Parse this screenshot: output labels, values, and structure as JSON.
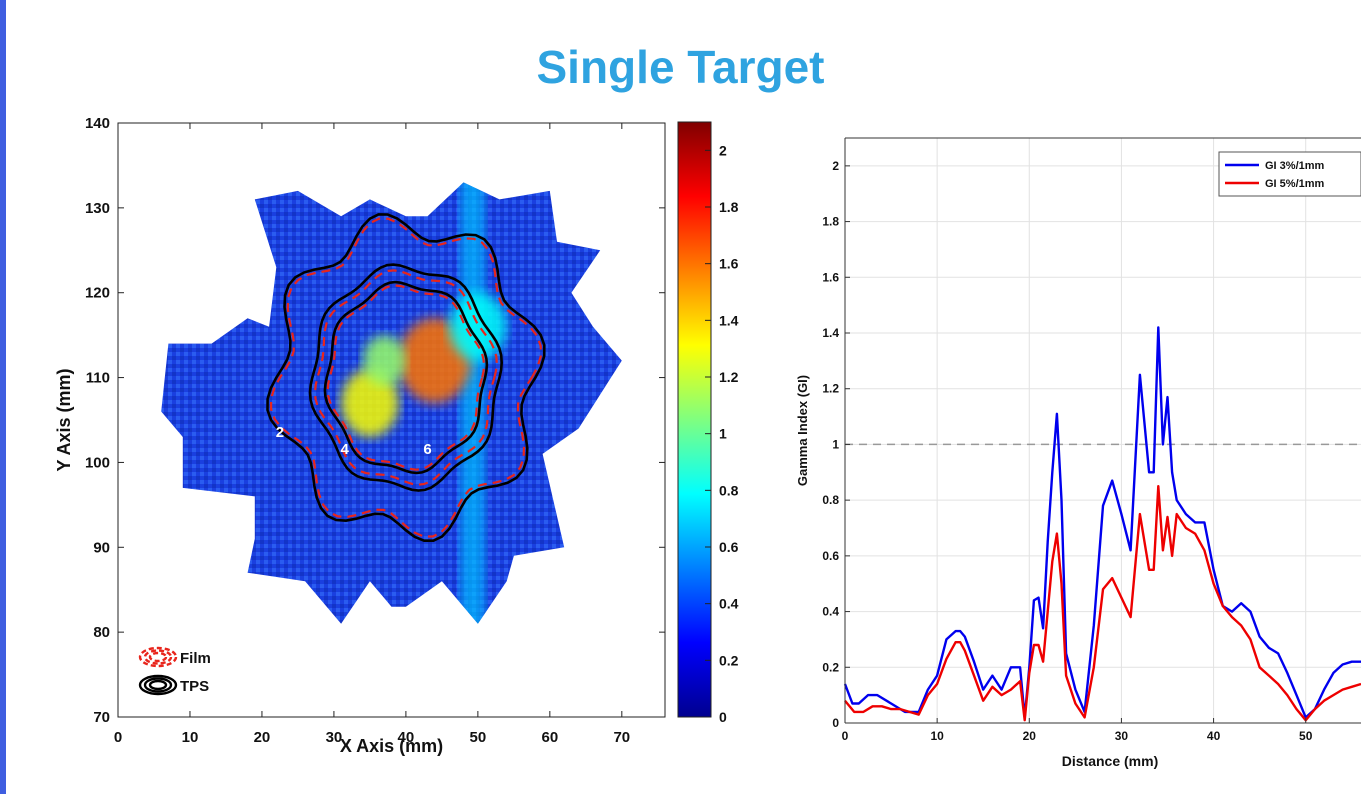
{
  "slide": {
    "title": "Single Target",
    "accent_color": "#3f5ee0",
    "title_color": "#2fa3e0"
  },
  "chart_data": [
    {
      "type": "heatmap",
      "title": "",
      "xlabel": "X Axis (mm)",
      "ylabel": "Y Axis (mm)",
      "xlim": [
        0,
        76
      ],
      "ylim": [
        70,
        140
      ],
      "xticks": [
        0,
        10,
        20,
        30,
        40,
        50,
        60,
        70
      ],
      "yticks": [
        70,
        80,
        90,
        100,
        110,
        120,
        130,
        140
      ],
      "colormap": "jet",
      "colorbar": {
        "range": [
          0,
          2.1
        ],
        "ticks": [
          0,
          0.2,
          0.4,
          0.6,
          0.8,
          1,
          1.2,
          1.4,
          1.6,
          1.8,
          2
        ]
      },
      "region_outline": [
        [
          21,
          116
        ],
        [
          18,
          117
        ],
        [
          13,
          114
        ],
        [
          7,
          114
        ],
        [
          6,
          106
        ],
        [
          9,
          103
        ],
        [
          9,
          97
        ],
        [
          19,
          96
        ],
        [
          19,
          91
        ],
        [
          18,
          87
        ],
        [
          26,
          86
        ],
        [
          31,
          81
        ],
        [
          35,
          86
        ],
        [
          38,
          83
        ],
        [
          40,
          83
        ],
        [
          45,
          86
        ],
        [
          50,
          81
        ],
        [
          54,
          86
        ],
        [
          55,
          89
        ],
        [
          62,
          90
        ],
        [
          59,
          101
        ],
        [
          64,
          104
        ],
        [
          70,
          112
        ],
        [
          66,
          116
        ],
        [
          63,
          120
        ],
        [
          67,
          125
        ],
        [
          61,
          126
        ],
        [
          60,
          132
        ],
        [
          53,
          131
        ],
        [
          48,
          133
        ],
        [
          43,
          129
        ],
        [
          40,
          129
        ],
        [
          35,
          131
        ],
        [
          31,
          129
        ],
        [
          25,
          132
        ],
        [
          19,
          131
        ],
        [
          22,
          123
        ]
      ],
      "hot_spots": [
        {
          "x": 44,
          "y": 112,
          "r": 5,
          "level": 1.6
        },
        {
          "x": 35,
          "y": 107,
          "r": 4,
          "level": 1.3
        },
        {
          "x": 37,
          "y": 112,
          "r": 3,
          "level": 1.1
        },
        {
          "x": 50,
          "y": 116,
          "r": 4,
          "level": 0.8
        }
      ],
      "dose_level_labels": [
        {
          "text": "2",
          "x": 22.5,
          "y": 103
        },
        {
          "text": "4",
          "x": 31.5,
          "y": 101
        },
        {
          "text": "6",
          "x": 43,
          "y": 101
        }
      ],
      "contour_radii": [
        {
          "film": 17.5,
          "tps": 18,
          "wave_amp": 1.6
        },
        {
          "film": 12.3,
          "tps": 13,
          "wave_amp": 0.5
        },
        {
          "film": 10.6,
          "tps": 11,
          "wave_amp": 0.4
        }
      ],
      "contour_center": [
        40,
        110
      ],
      "legend": [
        {
          "name": "Film",
          "color": "#e8251c",
          "style": "dashed"
        },
        {
          "name": "TPS",
          "color": "#000000",
          "style": "solid"
        }
      ],
      "legend_placement": "bottom-left"
    },
    {
      "type": "line",
      "title": "",
      "xlabel": "Distance (mm)",
      "ylabel": "Gamma Index (GI)",
      "xlim": [
        0,
        56
      ],
      "ylim": [
        0,
        2.1
      ],
      "xticks": [
        0,
        10,
        20,
        30,
        40,
        50
      ],
      "yticks": [
        0,
        0.2,
        0.4,
        0.6,
        0.8,
        1,
        1.2,
        1.4,
        1.6,
        1.8,
        2
      ],
      "grid": true,
      "reference_line": {
        "y": 1,
        "style": "dashed",
        "color": "#999999"
      },
      "legend_placement": "top-right",
      "series": [
        {
          "name": "GI 3%/1mm",
          "color": "#0000ee",
          "x": [
            0,
            0.8,
            1.5,
            2.5,
            3.5,
            5,
            6.5,
            8,
            9,
            10,
            11,
            12,
            12.5,
            13,
            14,
            15,
            16,
            17,
            18,
            19,
            19.5,
            20,
            20.5,
            21,
            21.5,
            22,
            22.5,
            23,
            23.5,
            24,
            25,
            26,
            27,
            28,
            29,
            30,
            31,
            32,
            33,
            33.5,
            34,
            34.5,
            35,
            35.5,
            36,
            37,
            38,
            39,
            40,
            41,
            42,
            43,
            44,
            45,
            46,
            47,
            48,
            49,
            50,
            51,
            52,
            53,
            54,
            55,
            56
          ],
          "y": [
            0.14,
            0.07,
            0.07,
            0.1,
            0.1,
            0.07,
            0.04,
            0.04,
            0.12,
            0.17,
            0.3,
            0.33,
            0.33,
            0.31,
            0.22,
            0.12,
            0.17,
            0.12,
            0.2,
            0.2,
            0.02,
            0.2,
            0.44,
            0.45,
            0.34,
            0.65,
            0.9,
            1.11,
            0.8,
            0.25,
            0.12,
            0.04,
            0.35,
            0.78,
            0.87,
            0.75,
            0.62,
            1.25,
            0.9,
            0.9,
            1.42,
            1.0,
            1.17,
            0.9,
            0.8,
            0.75,
            0.72,
            0.72,
            0.55,
            0.42,
            0.4,
            0.43,
            0.4,
            0.31,
            0.27,
            0.25,
            0.18,
            0.1,
            0.02,
            0.05,
            0.12,
            0.18,
            0.21,
            0.22,
            0.22
          ]
        },
        {
          "name": "GI 5%/1mm",
          "color": "#ee0000",
          "x": [
            0,
            1,
            2,
            3,
            4,
            5,
            6,
            7,
            8,
            9,
            10,
            11,
            12,
            12.5,
            13,
            14,
            15,
            16,
            17,
            18,
            19,
            19.5,
            20,
            20.5,
            21,
            21.5,
            22,
            22.5,
            23,
            23.5,
            24,
            25,
            26,
            27,
            28,
            29,
            30,
            31,
            32,
            33,
            33.5,
            34,
            34.5,
            35,
            35.5,
            36,
            37,
            38,
            39,
            40,
            41,
            42,
            43,
            44,
            45,
            46,
            47,
            48,
            49,
            50,
            51,
            52,
            53,
            54,
            55,
            56
          ],
          "y": [
            0.08,
            0.04,
            0.04,
            0.06,
            0.06,
            0.05,
            0.05,
            0.04,
            0.03,
            0.1,
            0.14,
            0.23,
            0.29,
            0.29,
            0.26,
            0.17,
            0.08,
            0.13,
            0.1,
            0.12,
            0.15,
            0.01,
            0.18,
            0.28,
            0.28,
            0.22,
            0.4,
            0.58,
            0.68,
            0.5,
            0.17,
            0.07,
            0.02,
            0.2,
            0.48,
            0.52,
            0.45,
            0.38,
            0.75,
            0.55,
            0.55,
            0.85,
            0.62,
            0.74,
            0.6,
            0.75,
            0.7,
            0.68,
            0.62,
            0.5,
            0.42,
            0.38,
            0.35,
            0.3,
            0.2,
            0.17,
            0.14,
            0.1,
            0.05,
            0.01,
            0.05,
            0.08,
            0.1,
            0.12,
            0.13,
            0.14
          ]
        }
      ]
    }
  ]
}
